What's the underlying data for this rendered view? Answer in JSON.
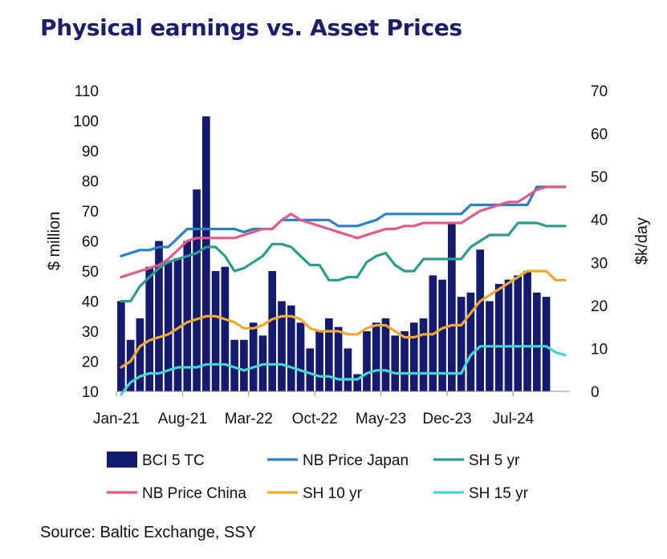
{
  "title": "Physical earnings vs. Asset Prices",
  "source": "Source: Baltic Exchange, SSY",
  "colors": {
    "bars": "#141a6e",
    "nb_japan": "#2a82c4",
    "sh5": "#2a9d8f",
    "nb_china": "#e05a8a",
    "sh10": "#f0a830",
    "sh15": "#46d6d0",
    "title": "#1b1f6b"
  },
  "chart_data": {
    "type": "bar+line",
    "ylabel": "$ million",
    "y2label": "$k/day",
    "ylim": [
      10,
      110
    ],
    "y2lim": [
      0,
      70
    ],
    "yticks": [
      10,
      20,
      30,
      40,
      50,
      60,
      70,
      80,
      90,
      100,
      110
    ],
    "y2ticks": [
      0,
      10,
      20,
      30,
      40,
      50,
      60,
      70
    ],
    "x_tick_labels": [
      "Jan-21",
      "Aug-21",
      "Mar-22",
      "Oct-22",
      "May-23",
      "Dec-23",
      "Jul-24"
    ],
    "x_tick_positions": [
      0,
      7,
      14,
      21,
      28,
      35,
      42
    ],
    "bar_series": {
      "name": "BCI 5 TC",
      "axis": "right",
      "values": [
        21,
        12,
        17,
        29,
        35,
        30,
        31,
        35,
        47,
        64,
        28,
        29,
        12,
        12,
        16,
        13,
        28,
        21,
        20,
        16,
        10,
        14,
        17,
        15,
        10,
        4,
        14,
        16,
        17,
        13,
        14,
        16,
        17,
        27,
        26,
        39,
        22,
        23,
        33,
        21,
        25,
        26,
        27,
        28,
        23,
        22
      ]
    },
    "line_series": [
      {
        "name": "NB Price Japan",
        "axis": "left",
        "values": [
          55,
          56,
          57,
          57,
          58,
          58,
          61,
          64,
          64,
          64,
          64,
          64,
          64,
          63,
          64,
          64,
          64,
          67,
          67,
          67,
          67,
          67,
          67,
          65,
          65,
          65,
          66,
          67,
          69,
          69,
          69,
          69,
          69,
          69,
          69,
          69,
          69,
          72,
          72,
          72,
          72,
          72,
          72,
          72,
          78,
          78,
          78,
          78
        ]
      },
      {
        "name": "SH 5 yr",
        "axis": "left",
        "values": [
          40,
          40,
          45,
          48,
          51,
          53,
          54,
          55,
          56,
          58,
          58,
          55,
          50,
          51,
          53,
          55,
          59,
          59,
          58,
          55,
          52,
          52,
          47,
          47,
          48,
          48,
          53,
          55,
          56,
          52,
          50,
          50,
          54,
          54,
          54,
          54,
          54,
          58,
          60,
          62,
          62,
          62,
          66,
          66,
          66,
          65,
          65,
          65
        ]
      },
      {
        "name": "NB Price China",
        "axis": "left",
        "values": [
          48,
          49,
          50,
          51,
          52,
          54,
          57,
          60,
          61,
          61,
          61,
          61,
          61,
          62,
          63,
          64,
          64,
          67,
          69,
          67,
          66,
          65,
          64,
          63,
          62,
          61,
          62,
          63,
          64,
          64,
          65,
          65,
          66,
          66,
          66,
          66,
          66,
          68,
          70,
          71,
          72,
          73,
          73,
          75,
          77,
          78,
          78,
          78
        ]
      },
      {
        "name": "SH 10 yr",
        "axis": "left",
        "values": [
          18,
          20,
          25,
          27,
          28,
          29,
          31,
          33,
          34,
          35,
          35,
          34,
          33,
          31,
          31,
          32,
          34,
          35,
          35,
          34,
          31,
          30,
          30,
          30,
          29,
          29,
          31,
          32,
          32,
          30,
          28,
          28,
          29,
          29,
          31,
          32,
          32,
          36,
          40,
          42,
          44,
          46,
          48,
          50,
          50,
          50,
          47,
          47
        ]
      },
      {
        "name": "SH 15 yr",
        "axis": "left",
        "values": [
          9,
          13,
          15,
          16,
          16,
          17,
          18,
          18,
          18,
          19,
          19,
          19,
          18,
          17,
          18,
          19,
          19,
          19,
          18,
          17,
          16,
          15,
          15,
          14,
          14,
          14,
          16,
          17,
          17,
          16,
          16,
          16,
          16,
          16,
          16,
          16,
          16,
          22,
          25,
          25,
          25,
          25,
          25,
          25,
          25,
          25,
          23,
          22
        ]
      }
    ],
    "legend": {
      "placement": "bottom",
      "row1": [
        "BCI 5 TC",
        "NB Price Japan",
        "SH 5 yr"
      ],
      "row2": [
        "NB Price China",
        "SH 10 yr",
        "SH 15 yr"
      ]
    }
  }
}
